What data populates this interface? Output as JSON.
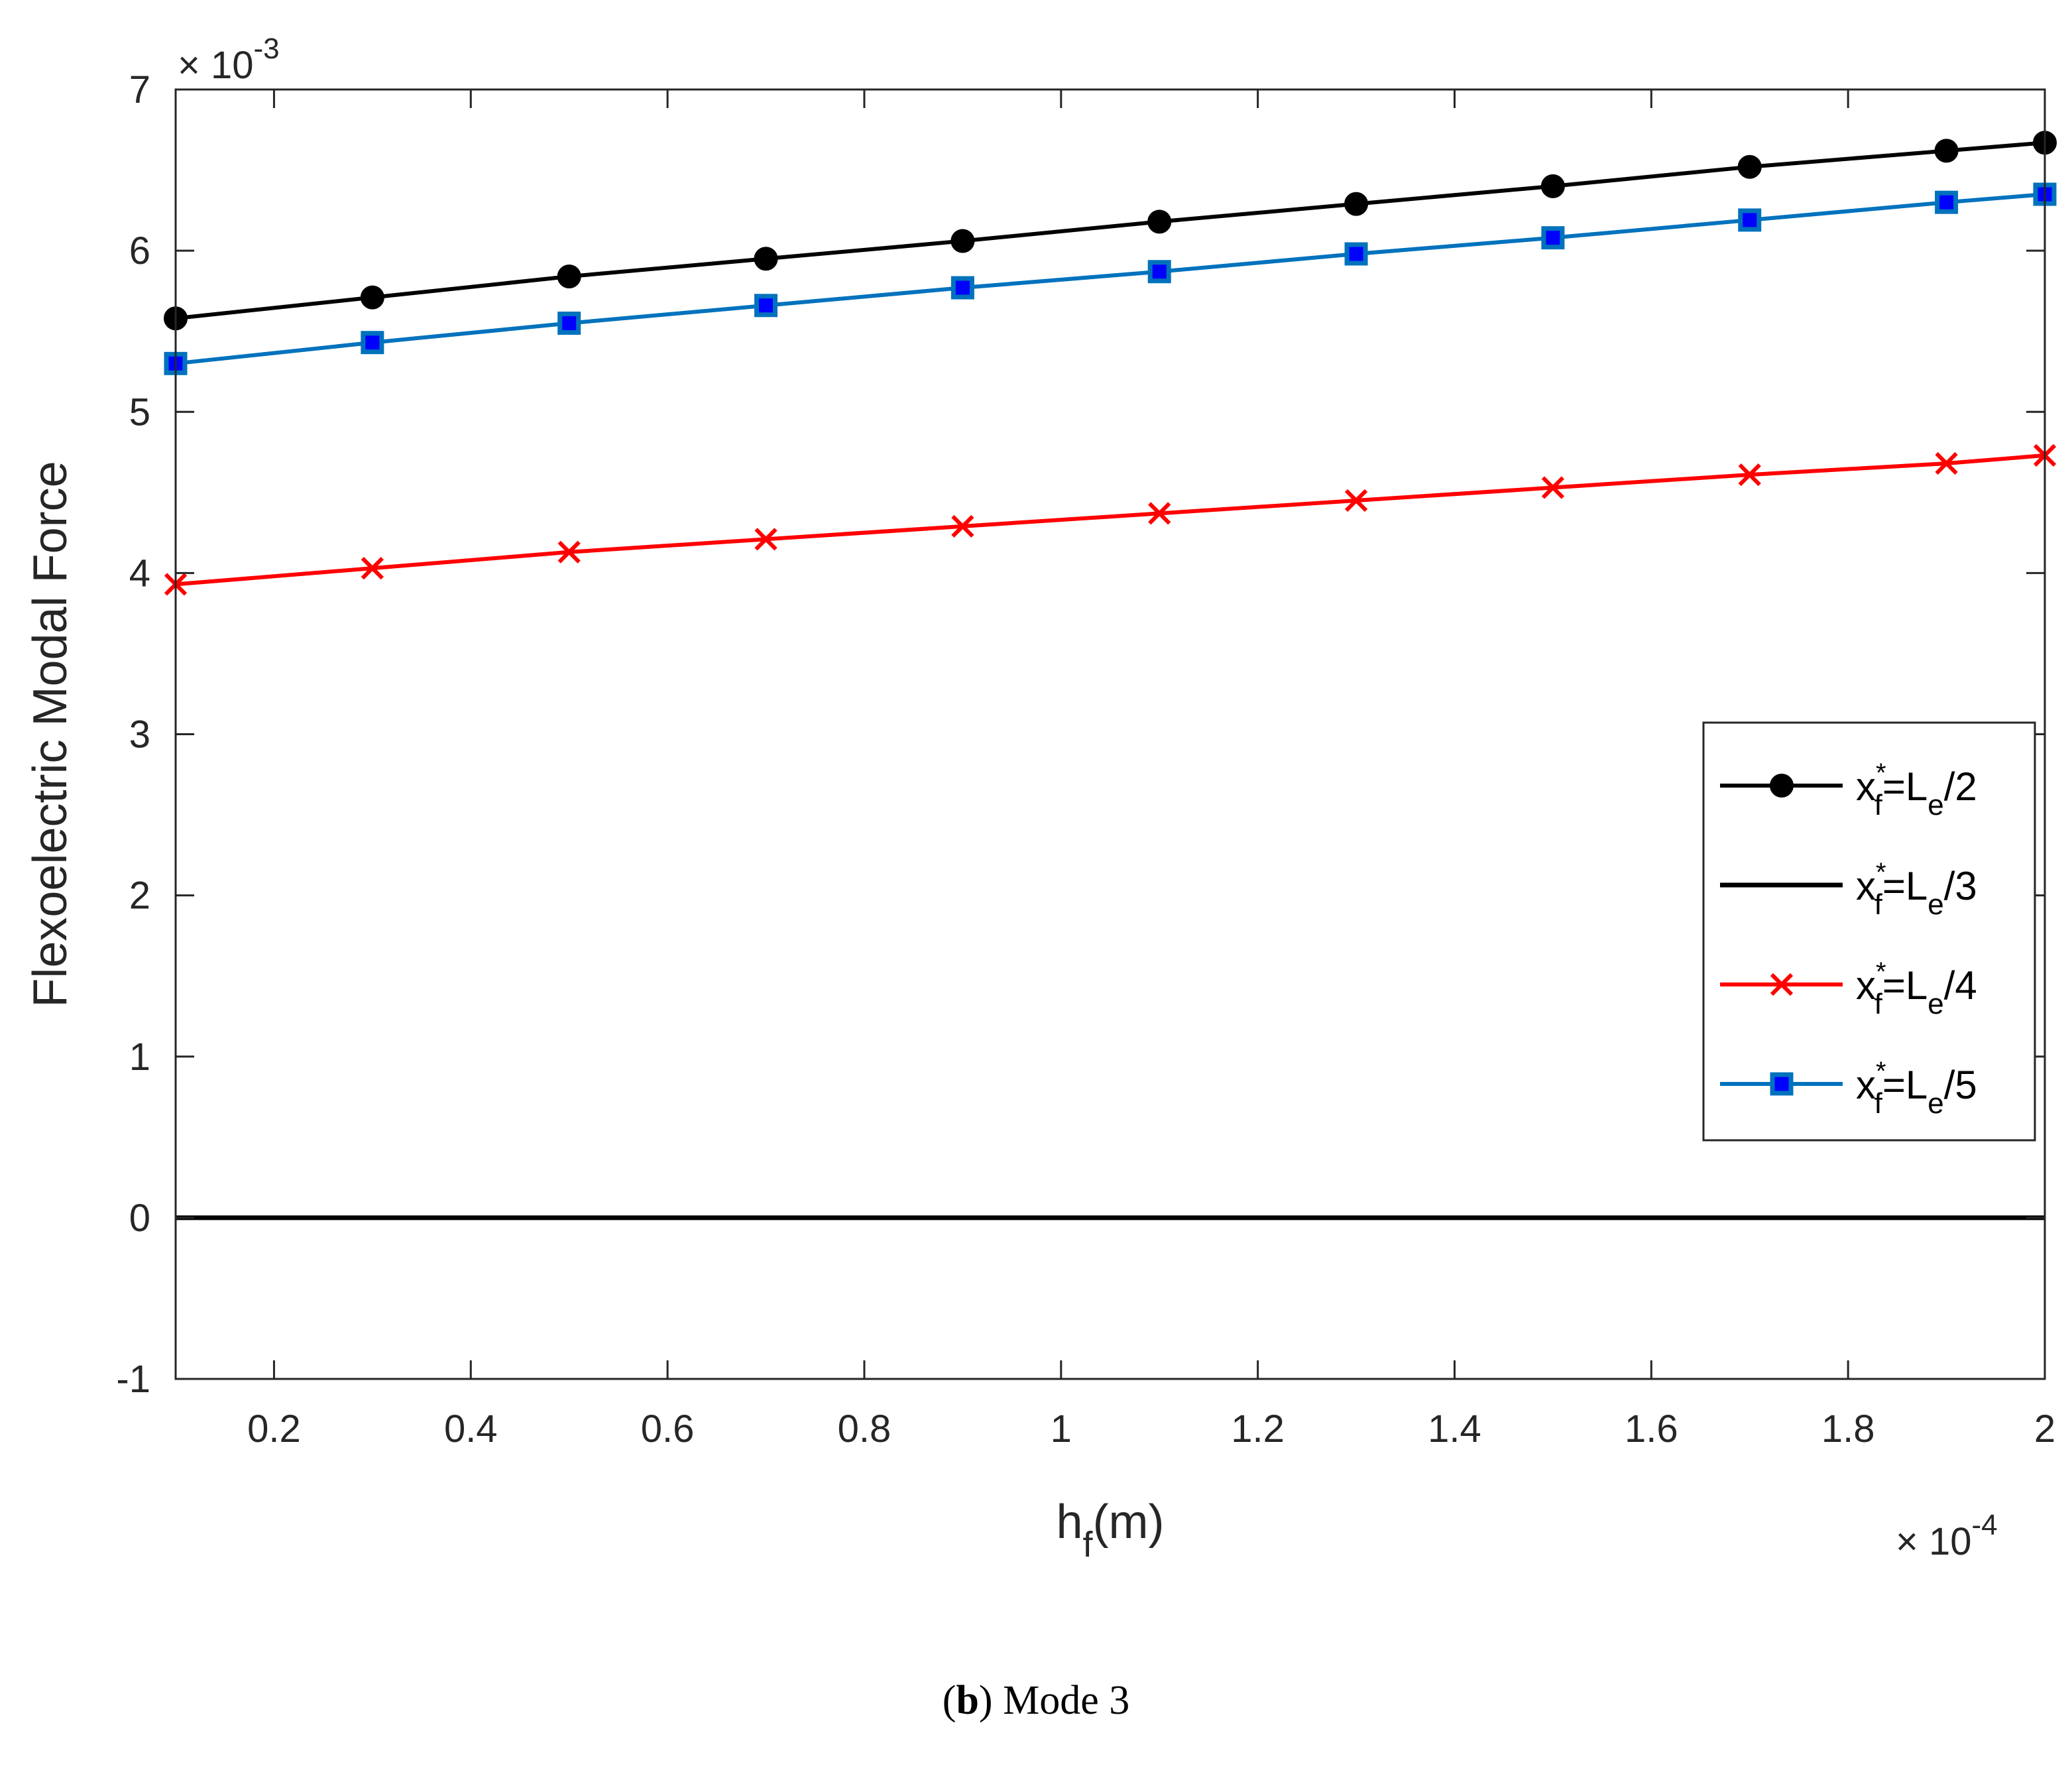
{
  "chart_data": {
    "type": "line",
    "title": "",
    "xlabel": "h_f(m)",
    "xlabel_main": "h",
    "xlabel_sub": "f",
    "xlabel_tail": "(m)",
    "ylabel": "Flexoelectric Modal Force",
    "x_multiplier": {
      "times": "×",
      "base": "10",
      "exponent": "-4"
    },
    "y_multiplier": {
      "times": "×",
      "base": "10",
      "exponent": "-3"
    },
    "xlim": [
      0.1,
      2.0
    ],
    "ylim": [
      -1,
      7
    ],
    "x_ticks": [
      0.2,
      0.4,
      0.6,
      0.8,
      1.0,
      1.2,
      1.4,
      1.6,
      1.8,
      2.0
    ],
    "x_tick_labels": [
      "0.2",
      "0.4",
      "0.6",
      "0.8",
      "1",
      "1.2",
      "1.4",
      "1.6",
      "1.8",
      "2"
    ],
    "y_ticks": [
      -1,
      0,
      1,
      2,
      3,
      4,
      5,
      6,
      7
    ],
    "y_tick_labels": [
      "-1",
      "0",
      "1",
      "2",
      "3",
      "4",
      "5",
      "6",
      "7"
    ],
    "grid": false,
    "legend_position": "center-right",
    "x": [
      0.1,
      0.3,
      0.5,
      0.7,
      0.9,
      1.1,
      1.3,
      1.5,
      1.7,
      1.9,
      2.0
    ],
    "series": [
      {
        "name": "x_f^*=L_e/2",
        "den": "2",
        "color": "#000000",
        "marker": "circle",
        "values": [
          5.58,
          5.71,
          5.84,
          5.95,
          6.06,
          6.18,
          6.29,
          6.4,
          6.52,
          6.62,
          6.67
        ]
      },
      {
        "name": "x_f^*=L_e/3",
        "den": "3",
        "color": "#000000",
        "marker": "none",
        "values": [
          0,
          0,
          0,
          0,
          0,
          0,
          0,
          0,
          0,
          0,
          0
        ]
      },
      {
        "name": "x_f^*=L_e/4",
        "den": "4",
        "color": "#ff0000",
        "marker": "x",
        "values": [
          3.93,
          4.03,
          4.13,
          4.21,
          4.29,
          4.37,
          4.45,
          4.53,
          4.61,
          4.68,
          4.73
        ]
      },
      {
        "name": "x_f^*=L_e/5",
        "den": "5",
        "color": "#0072bd",
        "marker": "square",
        "marker_face": "#0000ff",
        "values": [
          5.3,
          5.43,
          5.55,
          5.66,
          5.77,
          5.87,
          5.98,
          6.08,
          6.19,
          6.3,
          6.35
        ]
      }
    ]
  },
  "caption": {
    "prefix": "(",
    "bold": "b",
    "suffix": ") Mode 3"
  }
}
